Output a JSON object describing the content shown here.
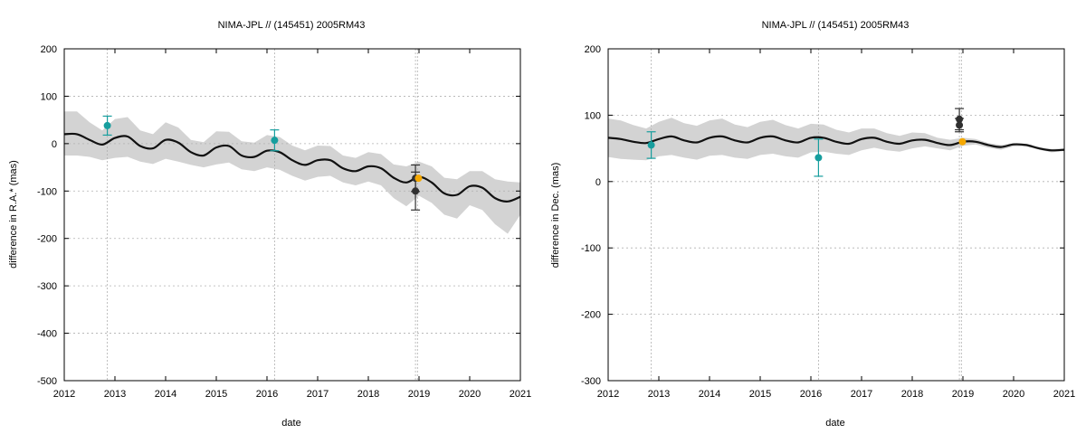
{
  "colors": {
    "band": "#d3d3d3",
    "model": "#111111",
    "obs_teal": "#179e9e",
    "obs_dark": "#303030",
    "obs_orange": "#f5a800",
    "grid": "#b0b0b0"
  },
  "chart_data": [
    {
      "type": "line",
      "title": "NIMA-JPL // (145451) 2005RM43",
      "xlabel": "date",
      "ylabel": "difference in R.A.* (mas)",
      "xlim": [
        2012,
        2021
      ],
      "ylim": [
        -500,
        200
      ],
      "xticks": [
        "2012",
        "2013",
        "2014",
        "2015",
        "2016",
        "2017",
        "2018",
        "2019",
        "2020",
        "2021"
      ],
      "yticks": [
        "200",
        "100",
        "0",
        "-100",
        "-200",
        "-300",
        "-400",
        "-500"
      ],
      "grid": true,
      "vlines": [
        2012.85,
        2016.15,
        2018.93,
        2018.97
      ],
      "model_curve": {
        "x": [
          2012.0,
          2012.25,
          2012.5,
          2012.75,
          2013.0,
          2013.25,
          2013.5,
          2013.75,
          2014.0,
          2014.25,
          2014.5,
          2014.75,
          2015.0,
          2015.25,
          2015.5,
          2015.75,
          2016.0,
          2016.25,
          2016.5,
          2016.75,
          2017.0,
          2017.25,
          2017.5,
          2017.75,
          2018.0,
          2018.25,
          2018.5,
          2018.75,
          2019.0,
          2019.25,
          2019.5,
          2019.75,
          2020.0,
          2020.25,
          2020.5,
          2020.75,
          2021.0
        ],
        "y": [
          20,
          20,
          8,
          -2,
          12,
          15,
          -5,
          -10,
          8,
          2,
          -18,
          -25,
          -8,
          -5,
          -25,
          -28,
          -15,
          -18,
          -35,
          -45,
          -35,
          -35,
          -52,
          -58,
          -48,
          -52,
          -72,
          -82,
          -70,
          -82,
          -105,
          -108,
          -90,
          -93,
          -115,
          -122,
          -112
        ]
      },
      "band": {
        "x": [
          2012.0,
          2012.25,
          2012.5,
          2012.75,
          2013.0,
          2013.25,
          2013.5,
          2013.75,
          2014.0,
          2014.25,
          2014.5,
          2014.75,
          2015.0,
          2015.25,
          2015.5,
          2015.75,
          2016.0,
          2016.25,
          2016.5,
          2016.75,
          2017.0,
          2017.25,
          2017.5,
          2017.75,
          2018.0,
          2018.25,
          2018.5,
          2018.75,
          2019.0,
          2019.25,
          2019.5,
          2019.75,
          2020.0,
          2020.25,
          2020.5,
          2020.75,
          2021.0
        ],
        "upper": [
          68,
          68,
          45,
          28,
          52,
          56,
          28,
          20,
          45,
          34,
          8,
          3,
          26,
          25,
          5,
          2,
          18,
          14,
          -4,
          -14,
          -4,
          -5,
          -25,
          -30,
          -18,
          -22,
          -44,
          -48,
          -38,
          -48,
          -72,
          -75,
          -58,
          -58,
          -75,
          -80,
          -82
        ],
        "lower": [
          -25,
          -25,
          -28,
          -35,
          -30,
          -28,
          -38,
          -43,
          -32,
          -38,
          -45,
          -50,
          -44,
          -40,
          -54,
          -58,
          -50,
          -55,
          -68,
          -78,
          -70,
          -68,
          -82,
          -88,
          -80,
          -88,
          -115,
          -132,
          -110,
          -125,
          -150,
          -158,
          -130,
          -140,
          -170,
          -190,
          -150
        ]
      },
      "observations": [
        {
          "x": 2012.85,
          "y": 38,
          "yerr": 20,
          "color": "teal"
        },
        {
          "x": 2016.15,
          "y": 7,
          "yerr": 22,
          "color": "teal"
        },
        {
          "x": 2018.93,
          "y": -73,
          "yerr": 28,
          "color": "dark"
        },
        {
          "x": 2018.93,
          "y": -100,
          "yerr": 40,
          "color": "dark"
        },
        {
          "x": 2018.99,
          "y": -73,
          "yerr": 0,
          "color": "orange"
        }
      ]
    },
    {
      "type": "line",
      "title": "NIMA-JPL // (145451) 2005RM43",
      "xlabel": "date",
      "ylabel": "difference in Dec. (mas)",
      "xlim": [
        2012,
        2021
      ],
      "ylim": [
        -300,
        200
      ],
      "xticks": [
        "2012",
        "2013",
        "2014",
        "2015",
        "2016",
        "2017",
        "2018",
        "2019",
        "2020",
        "2021"
      ],
      "yticks": [
        "200",
        "100",
        "0",
        "-100",
        "-200",
        "-300"
      ],
      "grid": true,
      "vlines": [
        2012.85,
        2016.15,
        2018.93,
        2018.97
      ],
      "model_curve": {
        "x": [
          2012.0,
          2012.25,
          2012.5,
          2012.75,
          2013.0,
          2013.25,
          2013.5,
          2013.75,
          2014.0,
          2014.25,
          2014.5,
          2014.75,
          2015.0,
          2015.25,
          2015.5,
          2015.75,
          2016.0,
          2016.25,
          2016.5,
          2016.75,
          2017.0,
          2017.25,
          2017.5,
          2017.75,
          2018.0,
          2018.25,
          2018.5,
          2018.75,
          2019.0,
          2019.25,
          2019.5,
          2019.75,
          2020.0,
          2020.25,
          2020.5,
          2020.75,
          2021.0
        ],
        "y": [
          66,
          64,
          60,
          58,
          64,
          68,
          62,
          59,
          66,
          68,
          62,
          59,
          66,
          68,
          62,
          59,
          66,
          66,
          60,
          57,
          64,
          66,
          60,
          57,
          62,
          63,
          58,
          55,
          60,
          60,
          55,
          52,
          56,
          55,
          50,
          47,
          48
        ]
      },
      "band": {
        "x": [
          2012.0,
          2012.25,
          2012.5,
          2012.75,
          2013.0,
          2013.25,
          2013.5,
          2013.75,
          2014.0,
          2014.25,
          2014.5,
          2014.75,
          2015.0,
          2015.25,
          2015.5,
          2015.75,
          2016.0,
          2016.25,
          2016.5,
          2016.75,
          2017.0,
          2017.25,
          2017.5,
          2017.75,
          2018.0,
          2018.25,
          2018.5,
          2018.75,
          2019.0,
          2019.25,
          2019.5,
          2019.75,
          2020.0,
          2020.25,
          2020.5,
          2020.75,
          2021.0
        ],
        "upper": [
          95,
          92,
          85,
          80,
          90,
          96,
          88,
          84,
          92,
          95,
          86,
          82,
          90,
          93,
          85,
          80,
          87,
          86,
          78,
          74,
          80,
          80,
          73,
          69,
          74,
          73,
          66,
          63,
          66,
          64,
          58,
          55,
          58,
          57,
          52,
          49,
          50
        ],
        "lower": [
          37,
          34,
          33,
          32,
          38,
          40,
          36,
          33,
          39,
          40,
          36,
          34,
          40,
          42,
          38,
          36,
          44,
          45,
          42,
          40,
          47,
          51,
          47,
          45,
          50,
          53,
          50,
          47,
          54,
          56,
          51,
          48,
          53,
          53,
          48,
          44,
          46
        ]
      },
      "observations": [
        {
          "x": 2012.85,
          "y": 55,
          "yerr": 20,
          "color": "teal"
        },
        {
          "x": 2016.15,
          "y": 36,
          "yerr": 28,
          "color": "teal"
        },
        {
          "x": 2018.93,
          "y": 94,
          "yerr": 16,
          "color": "dark"
        },
        {
          "x": 2018.93,
          "y": 85,
          "yerr": 10,
          "color": "dark"
        },
        {
          "x": 2018.99,
          "y": 60,
          "yerr": 0,
          "color": "orange"
        }
      ]
    }
  ]
}
